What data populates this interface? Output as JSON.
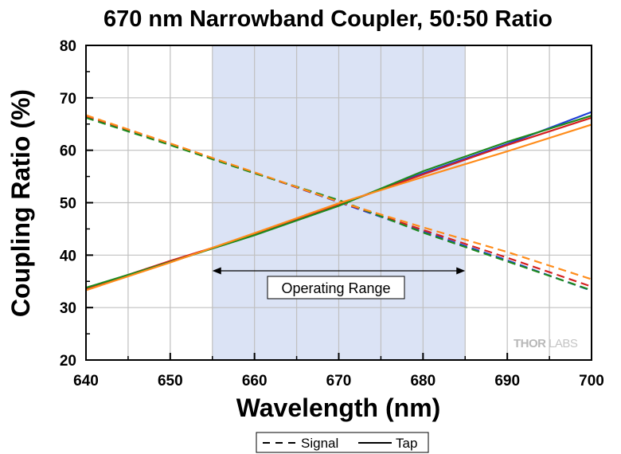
{
  "chart_data": {
    "type": "line",
    "title": "670 nm Narrowband Coupler, 50:50 Ratio",
    "xlabel": "Wavelength (nm)",
    "ylabel": "Coupling Ratio (%)",
    "xlim": [
      640,
      700
    ],
    "ylim": [
      20,
      80
    ],
    "xticks": [
      640,
      650,
      660,
      670,
      680,
      690,
      700
    ],
    "yticks": [
      20,
      30,
      40,
      50,
      60,
      70,
      80
    ],
    "grid": true,
    "operating_range": {
      "x": [
        655,
        685
      ],
      "label": "Operating Range",
      "shade_color": "#dbe3f5"
    },
    "legend": {
      "position": "bottom-center",
      "entries": [
        {
          "label": "Signal",
          "style": "dashed"
        },
        {
          "label": "Tap",
          "style": "solid"
        }
      ]
    },
    "watermark": {
      "part1": "THOR",
      "part2": "LABS"
    },
    "series": [
      {
        "kind": "signal",
        "color": "#1f3fd6",
        "style": "dashed",
        "points": [
          [
            640,
            66.5
          ],
          [
            650,
            61.2
          ],
          [
            660,
            55.7
          ],
          [
            670,
            50.1
          ],
          [
            680,
            44.5
          ],
          [
            690,
            39.0
          ],
          [
            700,
            33.2
          ]
        ]
      },
      {
        "kind": "signal",
        "color": "#d42020",
        "style": "dashed",
        "points": [
          [
            640,
            66.5
          ],
          [
            650,
            61.3
          ],
          [
            660,
            55.7
          ],
          [
            670,
            50.2
          ],
          [
            680,
            44.8
          ],
          [
            690,
            39.5
          ],
          [
            700,
            34.0
          ]
        ]
      },
      {
        "kind": "signal",
        "color": "#1f8a1f",
        "style": "dashed",
        "points": [
          [
            640,
            66.2
          ],
          [
            650,
            61.0
          ],
          [
            660,
            55.6
          ],
          [
            670,
            50.5
          ],
          [
            680,
            44.3
          ],
          [
            690,
            38.8
          ],
          [
            700,
            33.3
          ]
        ]
      },
      {
        "kind": "signal",
        "color": "#ff8c1a",
        "style": "dashed",
        "points": [
          [
            640,
            66.7
          ],
          [
            650,
            61.3
          ],
          [
            660,
            55.8
          ],
          [
            670,
            50.2
          ],
          [
            680,
            45.3
          ],
          [
            690,
            40.6
          ],
          [
            700,
            35.4
          ]
        ]
      },
      {
        "kind": "tap",
        "color": "#1f3fd6",
        "style": "solid",
        "points": [
          [
            640,
            33.7
          ],
          [
            650,
            38.7
          ],
          [
            660,
            44.0
          ],
          [
            670,
            49.6
          ],
          [
            680,
            55.6
          ],
          [
            690,
            61.2
          ],
          [
            700,
            67.3
          ]
        ]
      },
      {
        "kind": "tap",
        "color": "#d42020",
        "style": "solid",
        "points": [
          [
            640,
            33.6
          ],
          [
            650,
            38.9
          ],
          [
            660,
            43.9
          ],
          [
            670,
            49.6
          ],
          [
            680,
            55.4
          ],
          [
            690,
            61.0
          ],
          [
            700,
            66.2
          ]
        ]
      },
      {
        "kind": "tap",
        "color": "#1f8a1f",
        "style": "solid",
        "points": [
          [
            640,
            33.8
          ],
          [
            650,
            38.7
          ],
          [
            660,
            43.8
          ],
          [
            670,
            49.4
          ],
          [
            680,
            56.0
          ],
          [
            690,
            61.6
          ],
          [
            700,
            66.6
          ]
        ]
      },
      {
        "kind": "tap",
        "color": "#ff8c1a",
        "style": "solid",
        "points": [
          [
            640,
            33.3
          ],
          [
            650,
            38.6
          ],
          [
            660,
            44.2
          ],
          [
            670,
            49.9
          ],
          [
            680,
            54.9
          ],
          [
            690,
            59.8
          ],
          [
            700,
            64.9
          ]
        ]
      }
    ]
  }
}
